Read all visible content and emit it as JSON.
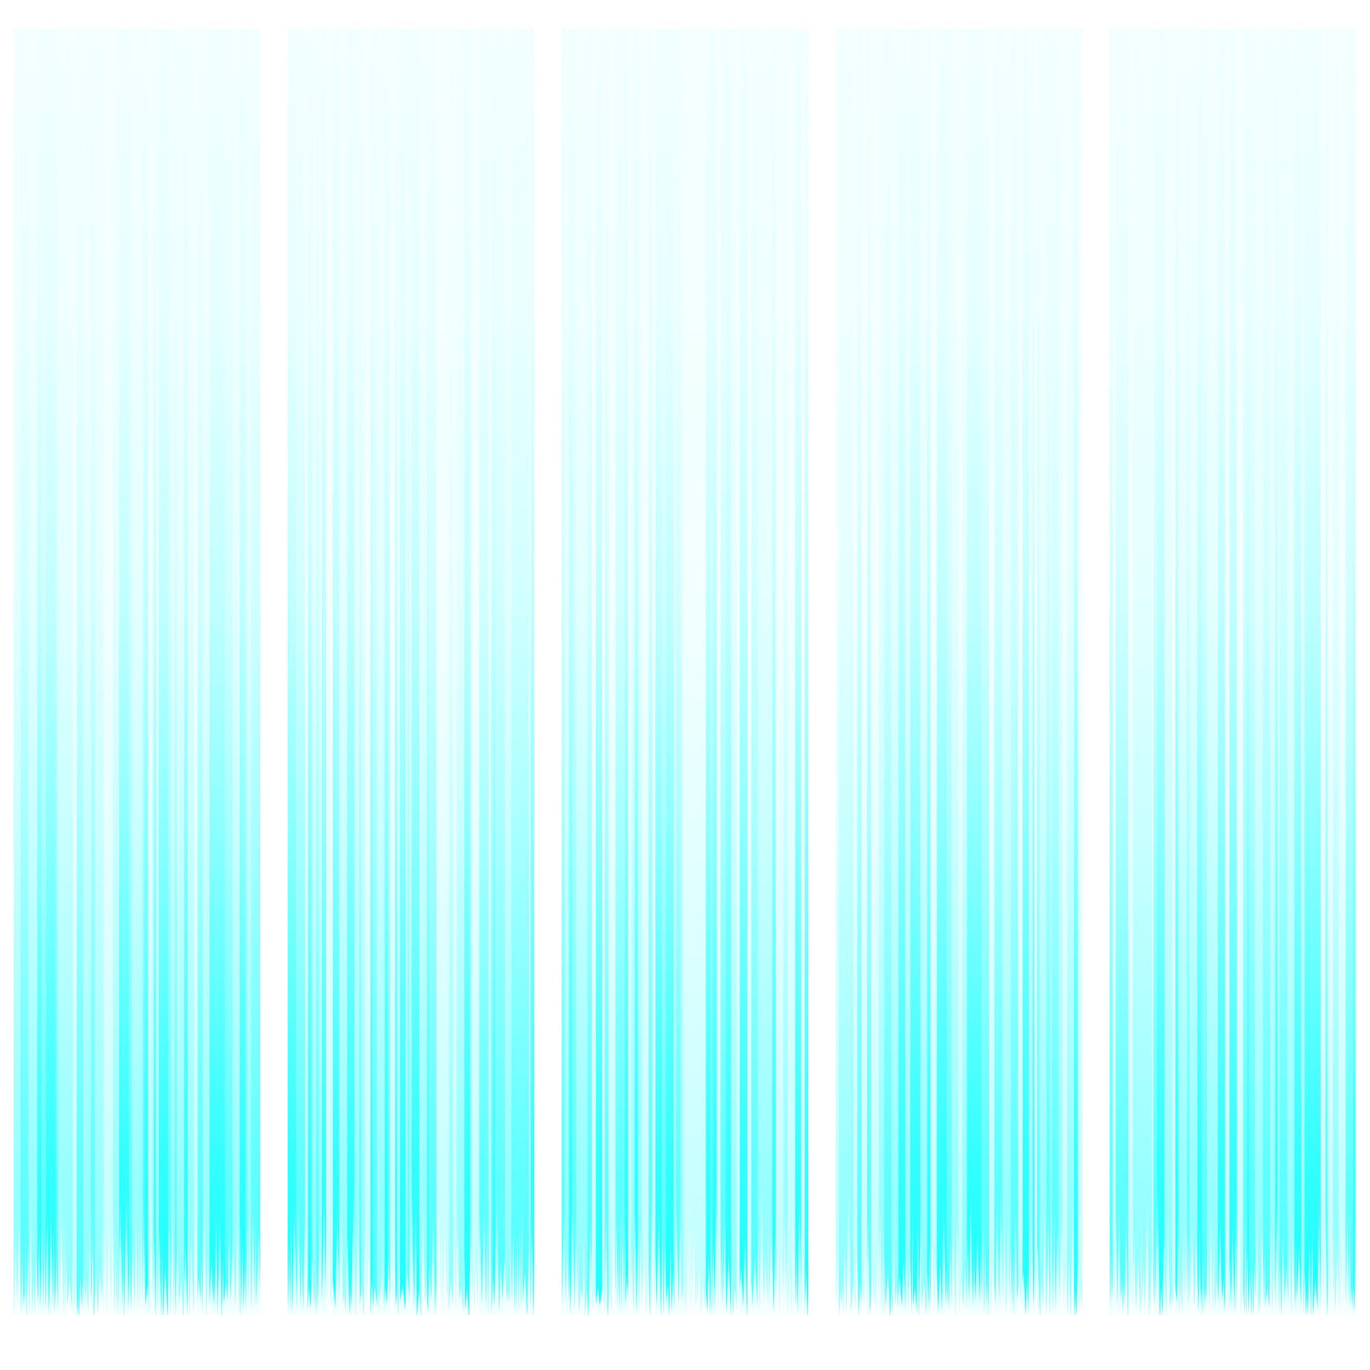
{
  "scene": {
    "description_free": true,
    "palette": {
      "background": "#ffffff",
      "highlight": "#ffffff",
      "pale": "#f2ffff",
      "mid": "#8cffff",
      "strong": "#33ffff",
      "deep": "#1affff"
    },
    "panels": [
      {
        "name": "curtain-panel-1",
        "seed": 11
      },
      {
        "name": "curtain-panel-2",
        "seed": 23
      },
      {
        "name": "curtain-panel-3",
        "seed": 37
      },
      {
        "name": "curtain-panel-4",
        "seed": 41
      },
      {
        "name": "curtain-panel-5",
        "seed": 59
      }
    ]
  }
}
